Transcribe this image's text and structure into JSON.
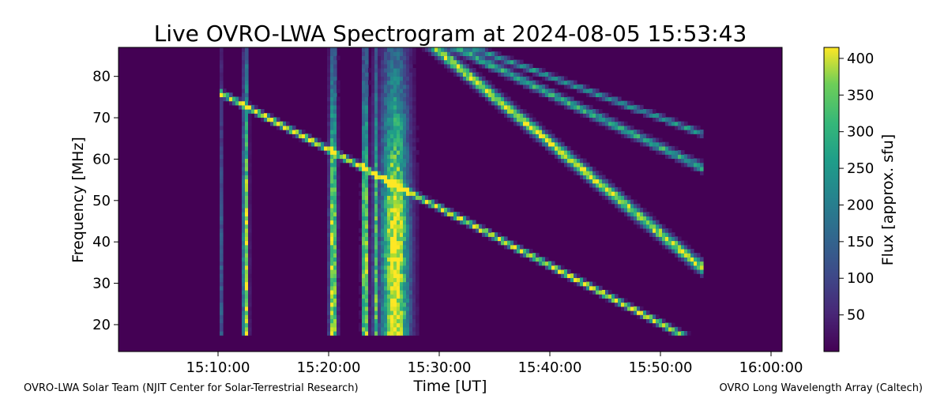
{
  "chart_data": {
    "type": "heatmap",
    "title": "Live OVRO-LWA Spectrogram at 2024-08-05 15:53:43",
    "xlabel": "Time [UT]",
    "ylabel": "Frequency [MHz]",
    "x_ticks": [
      "15:10:00",
      "15:20:00",
      "15:30:00",
      "15:40:00",
      "15:50:00",
      "16:00:00"
    ],
    "x_tick_minutes": [
      10,
      20,
      30,
      40,
      50,
      60
    ],
    "xlim_minutes_after_15h": [
      1,
      61
    ],
    "y_ticks": [
      "20",
      "30",
      "40",
      "50",
      "60",
      "70",
      "80"
    ],
    "y_tick_values": [
      20,
      30,
      40,
      50,
      60,
      70,
      80
    ],
    "ylim": [
      13.5,
      87
    ],
    "colorbar": {
      "label": "Flux [approx. sfu]",
      "colormap": "viridis",
      "range": [
        0,
        415
      ],
      "ticks": [
        "50",
        "100",
        "150",
        "200",
        "250",
        "300",
        "350",
        "400"
      ],
      "tick_values": [
        50,
        100,
        150,
        200,
        250,
        300,
        350,
        400
      ]
    },
    "data_extent_minutes": [
      10.2,
      53.8
    ],
    "frequency_extent_mhz": [
      17,
      87
    ],
    "features": [
      {
        "kind": "burst",
        "t": 10.0,
        "w": 0.25,
        "amp": 1.0
      },
      {
        "kind": "burst",
        "t": 12.5,
        "w": 0.22,
        "amp": 1.0
      },
      {
        "kind": "burst",
        "t": 20.4,
        "w": 0.3,
        "amp": 1.0
      },
      {
        "kind": "burst",
        "t": 23.3,
        "w": 0.25,
        "amp": 1.0
      },
      {
        "kind": "burst",
        "t": 24.2,
        "w": 0.15,
        "amp": 0.8
      },
      {
        "kind": "burst",
        "t": 26.0,
        "w": 1.2,
        "amp": 1.0
      },
      {
        "kind": "drift",
        "t0": 28.8,
        "f0": 50,
        "rate": -1.4,
        "w": 0.5,
        "amp": 1.0
      },
      {
        "kind": "drift",
        "t0": 30.5,
        "f0": 85,
        "rate": -2.2,
        "w": 0.7,
        "amp": 0.9
      },
      {
        "kind": "drift",
        "t0": 33.0,
        "f0": 85,
        "rate": -1.3,
        "w": 0.8,
        "amp": 0.6
      },
      {
        "kind": "drift",
        "t0": 35.0,
        "f0": 85,
        "rate": -1.0,
        "w": 0.7,
        "amp": 0.5
      }
    ]
  },
  "footer": {
    "left": "OVRO-LWA Solar Team (NJIT Center for Solar-Terrestrial Research)",
    "right": "OVRO Long Wavelength Array (Caltech)"
  },
  "colors": {
    "viridis_low": "#440154",
    "viridis_mid": "#21918c",
    "viridis_high": "#fde725"
  }
}
